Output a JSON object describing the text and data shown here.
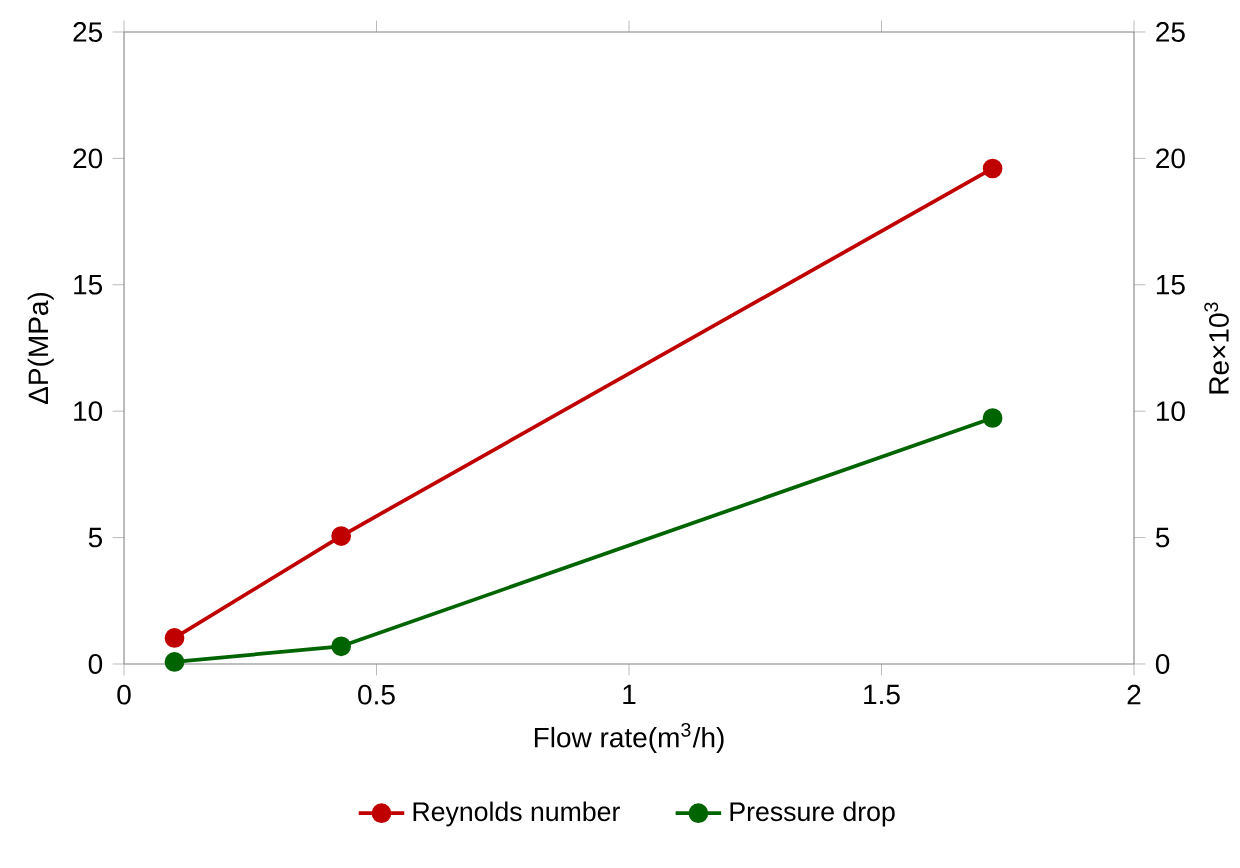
{
  "chart_data": {
    "type": "line",
    "xlabel": "Flow rate(m$^{3}$/h)",
    "ylabel": "ΔP(MPa)",
    "y2label": "Re×10$^{3}$",
    "x": [
      0.1,
      0.43,
      1.72
    ],
    "series": [
      {
        "name": "Reynolds number",
        "color": "#c00000",
        "values": [
          1.03,
          5.06,
          19.6
        ]
      },
      {
        "name": "Pressure drop",
        "color": "#006400",
        "values": [
          0.08,
          0.7,
          9.73
        ]
      }
    ],
    "xlim": [
      0,
      2
    ],
    "xticks": [
      0,
      0.5,
      1,
      1.5,
      2
    ],
    "ylim": [
      0,
      25
    ],
    "yticks": [
      0,
      5,
      10,
      15,
      20,
      25
    ],
    "y2lim": [
      0,
      25
    ],
    "y2ticks": [
      0,
      5,
      10,
      15,
      20,
      25
    ],
    "legend": "bottom",
    "marker": "circle",
    "line_style": "solid",
    "grid": false
  }
}
